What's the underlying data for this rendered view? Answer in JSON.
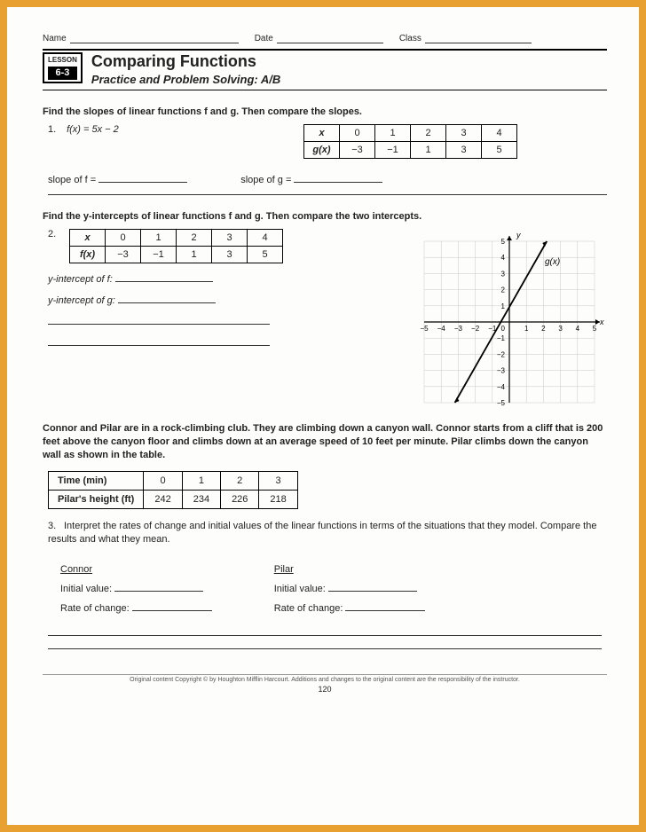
{
  "header": {
    "name_label": "Name",
    "date_label": "Date",
    "class_label": "Class"
  },
  "lesson": {
    "word": "LESSON",
    "number": "6-3",
    "title": "Comparing Functions",
    "subtitle": "Practice and Problem Solving: A/B"
  },
  "section1": {
    "instruction": "Find the slopes of linear functions f and g. Then compare the slopes.",
    "q_num": "1.",
    "equation": "f(x) = 5x − 2",
    "table": {
      "row1_label": "x",
      "row1": [
        "0",
        "1",
        "2",
        "3",
        "4"
      ],
      "row2_label": "g(x)",
      "row2": [
        "−3",
        "−1",
        "1",
        "3",
        "5"
      ]
    },
    "slope_f": "slope of f =",
    "slope_g": "slope of g ="
  },
  "section2": {
    "instruction": "Find the y-intercepts of linear functions f and g. Then compare the two intercepts.",
    "q_num": "2.",
    "table": {
      "row1_label": "x",
      "row1": [
        "0",
        "1",
        "2",
        "3",
        "4"
      ],
      "row2_label": "f(x)",
      "row2": [
        "−3",
        "−1",
        "1",
        "3",
        "5"
      ]
    },
    "yint_f": "y-intercept of f:",
    "yint_g": "y-intercept of g:",
    "chart": {
      "xlim": [
        -5,
        5
      ],
      "ylim": [
        -5,
        5
      ],
      "tick_step": 1,
      "xlabel": "x",
      "ylabel": "y",
      "series_label": "g(x)",
      "grid_color": "#c8c8c8",
      "axis_color": "#000",
      "line_color": "#000",
      "line": [
        [
          -3.2,
          -5
        ],
        [
          2.2,
          5
        ]
      ]
    }
  },
  "section3": {
    "wordprob": "Connor and Pilar are in a rock-climbing club. They are climbing down a canyon wall. Connor starts from a cliff that is 200 feet above the canyon floor and climbs down at an average speed of 10 feet per minute. Pilar climbs down the canyon wall as shown in the table.",
    "table": {
      "row1_label": "Time (min)",
      "row1": [
        "0",
        "1",
        "2",
        "3"
      ],
      "row2_label": "Pilar's height (ft)",
      "row2": [
        "242",
        "234",
        "226",
        "218"
      ]
    },
    "q_num": "3.",
    "q_text": "Interpret the rates of change and initial values of the linear functions in terms of the situations that they model. Compare the results and what they mean.",
    "connor": "Connor",
    "pilar": "Pilar",
    "initial": "Initial value:",
    "rate": "Rate of change:"
  },
  "footer": {
    "copyright": "Original content Copyright © by Houghton Mifflin Harcourt. Additions and changes to the original content are the responsibility of the instructor.",
    "page": "120"
  }
}
